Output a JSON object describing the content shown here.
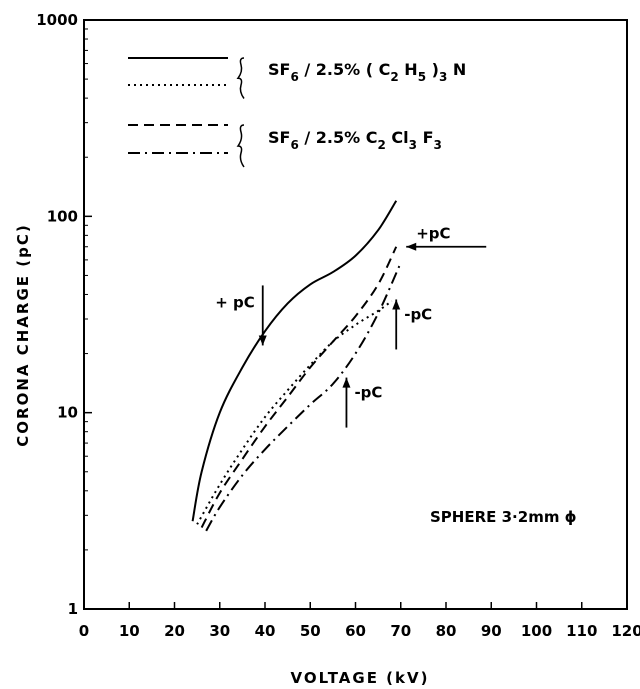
{
  "chart_data": {
    "type": "line",
    "title": "",
    "xlabel": "VOLTAGE (kV)",
    "ylabel": "CORONA  CHARGE (pC)",
    "xlim": [
      0,
      120
    ],
    "ylim": [
      1,
      1000
    ],
    "yscale": "log",
    "grid": false,
    "x_ticks": [
      "0",
      "10",
      "20",
      "30",
      "40",
      "50",
      "60",
      "70",
      "80",
      "90",
      "100",
      "110",
      "120"
    ],
    "y_ticks": [
      {
        "value": 1,
        "label": "1"
      },
      {
        "value": 10,
        "label": "10"
      },
      {
        "value": 100,
        "label": "100"
      },
      {
        "value": 1000,
        "label": "1000"
      }
    ],
    "legend": {
      "placement": "top-left",
      "groups": [
        {
          "text_main": "SF",
          "sub1": "6",
          "text_mid": " / 2.5% ( C",
          "sub2": "2",
          "text_mid2": " H",
          "sub3": "5",
          "text_end": " )",
          "sub4": "3",
          "text_tail": " N",
          "styles": [
            "solid",
            "dotted"
          ]
        },
        {
          "text_main": "SF",
          "sub1": "6",
          "text_mid": " / 2.5% C",
          "sub2": "2",
          "text_mid2": " Cl",
          "sub3": "3",
          "text_end": " F",
          "sub4": "3",
          "text_tail": "",
          "styles": [
            "dashed",
            "dashdot"
          ]
        }
      ]
    },
    "series": [
      {
        "style": "solid",
        "x": [
          24,
          26,
          30,
          35,
          40,
          45,
          50,
          55,
          60,
          65,
          69
        ],
        "y": [
          2.8,
          5,
          10,
          17,
          26,
          36,
          45,
          52,
          63,
          85,
          120
        ]
      },
      {
        "style": "dotted",
        "x": [
          25,
          30,
          35,
          40,
          45,
          50,
          55,
          60,
          65,
          68
        ],
        "y": [
          2.7,
          4.3,
          6.5,
          9.5,
          13,
          17.5,
          23,
          28,
          33,
          37
        ]
      },
      {
        "style": "dashed",
        "x": [
          26,
          30,
          35,
          40,
          45,
          50,
          55,
          60,
          65,
          69
        ],
        "y": [
          2.6,
          3.9,
          5.8,
          8.5,
          12,
          17,
          23,
          31,
          45,
          70
        ]
      },
      {
        "style": "dashdot",
        "x": [
          27,
          30,
          35,
          40,
          45,
          50,
          55,
          60,
          65,
          70
        ],
        "y": [
          2.5,
          3.3,
          4.8,
          6.5,
          8.5,
          11,
          14,
          20,
          32,
          58
        ]
      }
    ],
    "annotations": [
      {
        "text": "+ pC",
        "arrow": "down",
        "x": 39.5,
        "y": 22
      },
      {
        "text": "+pC",
        "arrow": "left",
        "x": 69,
        "y": 70
      },
      {
        "text": "-pC",
        "arrow": "up",
        "x": 69,
        "y": 40
      },
      {
        "text": "-pC",
        "arrow": "up",
        "x": 58,
        "y": 16
      }
    ],
    "note": "SPHERE 3·2mm ϕ"
  }
}
